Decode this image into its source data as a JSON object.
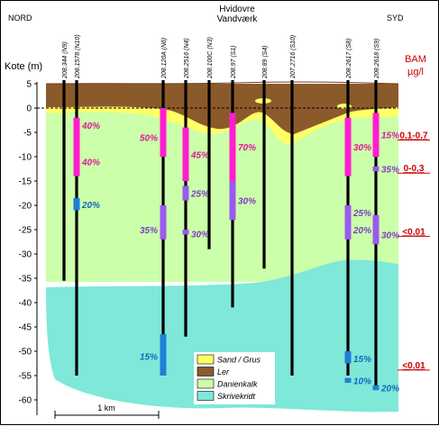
{
  "header": {
    "left": "NORD",
    "center_line1": "Hvidovre",
    "center_line2": "Vandværk",
    "right": "SYD"
  },
  "axis": {
    "label": "Kote (m)",
    "ticks": [
      5,
      0,
      -5,
      -10,
      -15,
      -20,
      -25,
      -30,
      -35,
      -40,
      -45,
      -50,
      -55,
      -60
    ]
  },
  "legend_bam": {
    "title1": "BAM",
    "title2": "µg/l",
    "ranges": [
      "0,1-0,7",
      "0-0,3",
      "<0,01",
      "<0,01"
    ]
  },
  "scale_bar": {
    "label": "1 km"
  },
  "legend": [
    {
      "label": "Sand / Grus",
      "color": "#ffff66"
    },
    {
      "label": "Ler",
      "color": "#8b5a2b"
    },
    {
      "label": "Danienkalk",
      "color": "#ccffaa"
    },
    {
      "label": "Skrivekridt",
      "color": "#7fe8d8"
    }
  ],
  "colors": {
    "clay": "#8b5a2b",
    "sand": "#ffff66",
    "danien": "#ccffaa",
    "chalk": "#7fe8d8",
    "screen_magenta": "#ff1ed0",
    "screen_purple": "#9b59f0",
    "screen_blue": "#1f7fd6",
    "pct_magenta": "#e0189b",
    "pct_purple": "#7a3fc0",
    "pct_blue": "#1565c0",
    "bam_red": "#cc0000"
  },
  "wells": [
    {
      "id": "208.344 (N9)",
      "bottom": -35.5,
      "screens": []
    },
    {
      "id": "208.1578 (N10)",
      "bottom": -55,
      "screens": [
        {
          "top": -2,
          "bot": -14,
          "type": "magenta",
          "pcts": [
            {
              "v": "40%",
              "at": -3.5
            },
            {
              "v": "40%",
              "at": -11
            }
          ]
        },
        {
          "top": -18.5,
          "bot": -21,
          "type": "blue",
          "pcts": [
            {
              "v": "20%",
              "at": -19.8
            }
          ]
        }
      ]
    },
    {
      "id": "208.120A (N6)",
      "bottom": -55,
      "screens": [
        {
          "top": 0,
          "bot": -10,
          "type": "magenta",
          "pcts": [
            {
              "v": "50%",
              "at": -6
            }
          ]
        },
        {
          "top": -20,
          "bot": -27,
          "type": "purple",
          "pcts": [
            {
              "v": "35%",
              "at": -25
            }
          ]
        },
        {
          "top": -46.5,
          "bot": -55,
          "type": "blue",
          "pcts": [
            {
              "v": "15%",
              "at": -51
            }
          ]
        }
      ]
    },
    {
      "id": "208.2516 (N4)",
      "bottom": -47,
      "screens": [
        {
          "top": -4,
          "bot": -15,
          "type": "magenta",
          "pcts": [
            {
              "v": "45%",
              "at": -9.5
            }
          ]
        },
        {
          "top": -16,
          "bot": -19,
          "type": "purple",
          "pcts": [
            {
              "v": "25%",
              "at": -17.5
            }
          ]
        },
        {
          "top": -25,
          "bot": -26,
          "type": "purple",
          "pcts": [
            {
              "v": "30%",
              "at": -25.8
            }
          ]
        }
      ]
    },
    {
      "id": "208.100C (N3)",
      "bottom": -29,
      "screens": []
    },
    {
      "id": "208.97 (S1)",
      "bottom": -41,
      "screens": [
        {
          "top": -1,
          "bot": -15,
          "type": "magenta",
          "pcts": [
            {
              "v": "70%",
              "at": -8
            }
          ]
        },
        {
          "top": -15,
          "bot": -23,
          "type": "purple",
          "pcts": [
            {
              "v": "30%",
              "at": -19
            }
          ]
        }
      ]
    },
    {
      "id": "208.89 (S4)",
      "bottom": -33,
      "screens": []
    },
    {
      "id": "207.2716 (S10)",
      "bottom": -55,
      "screens": []
    },
    {
      "id": "208.2617 (S8)",
      "bottom": -55,
      "screens": [
        {
          "top": -2,
          "bot": -14,
          "type": "magenta",
          "pcts": [
            {
              "v": "30%",
              "at": -8
            }
          ]
        },
        {
          "top": -20,
          "bot": -27,
          "type": "purple",
          "pcts": [
            {
              "v": "25%",
              "at": -21.5
            },
            {
              "v": "20%",
              "at": -25
            }
          ]
        },
        {
          "top": -50,
          "bot": -52.5,
          "type": "blue",
          "pcts": [
            {
              "v": "15%",
              "at": -51.5
            }
          ]
        },
        {
          "top": -55.5,
          "bot": -56.5,
          "type": "blue",
          "pcts": [
            {
              "v": "10%",
              "at": -56
            }
          ]
        }
      ]
    },
    {
      "id": "208.2618 (S9)",
      "bottom": -57.5,
      "screens": [
        {
          "top": -1,
          "bot": -10,
          "type": "magenta",
          "pcts": [
            {
              "v": "15%",
              "at": -5.5
            }
          ]
        },
        {
          "top": -12,
          "bot": -13,
          "type": "purple",
          "pcts": [
            {
              "v": "35%",
              "at": -12.5
            }
          ]
        },
        {
          "top": -22,
          "bot": -28,
          "type": "purple",
          "pcts": [
            {
              "v": "30%",
              "at": -26
            }
          ]
        },
        {
          "top": -57,
          "bot": -58,
          "type": "blue",
          "pcts": [
            {
              "v": "20%",
              "at": -57.5
            }
          ]
        }
      ]
    }
  ]
}
